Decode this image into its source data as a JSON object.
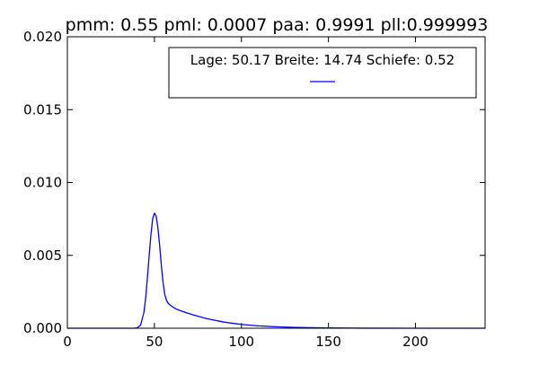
{
  "chart_data": {
    "type": "line",
    "title": "pmm: 0.55 pml: 0.0007 paa: 0.9991 pll:0.999993",
    "xlim": [
      0,
      240
    ],
    "ylim": [
      0,
      0.02
    ],
    "x_ticks": [
      0,
      50,
      100,
      150,
      200
    ],
    "y_ticks": [
      0.0,
      0.005,
      0.01,
      0.015,
      0.02
    ],
    "x_tick_labels": [
      "0",
      "50",
      "100",
      "150",
      "200"
    ],
    "y_tick_labels": [
      "0.000",
      "0.005",
      "0.010",
      "0.015",
      "0.020"
    ],
    "grid": false,
    "legend": {
      "placement": "top-right",
      "entries": [
        {
          "label": "Lage: 50.17 Breite: 14.74 Schiefe: 0.52",
          "color": "#0000ff"
        }
      ]
    },
    "series": [
      {
        "color": "#0000ff",
        "x": [
          0,
          30,
          38,
          40,
          42,
          44,
          45,
          46,
          47,
          48,
          49,
          50,
          51,
          52,
          53,
          54,
          55,
          56,
          57,
          58,
          60,
          62,
          65,
          70,
          75,
          80,
          90,
          100,
          110,
          120,
          130,
          140,
          150,
          170,
          200,
          240
        ],
        "y": [
          0,
          0,
          0,
          2e-05,
          0.0002,
          0.0011,
          0.0021,
          0.0035,
          0.005,
          0.0064,
          0.0075,
          0.0079,
          0.0077,
          0.0069,
          0.0057,
          0.0043,
          0.0031,
          0.0023,
          0.0019,
          0.0017,
          0.0015,
          0.00135,
          0.0012,
          0.001,
          0.00082,
          0.00066,
          0.00042,
          0.00026,
          0.00016,
          0.0001,
          6e-05,
          4e-05,
          2e-05,
          5e-06,
          0,
          0
        ]
      }
    ]
  }
}
